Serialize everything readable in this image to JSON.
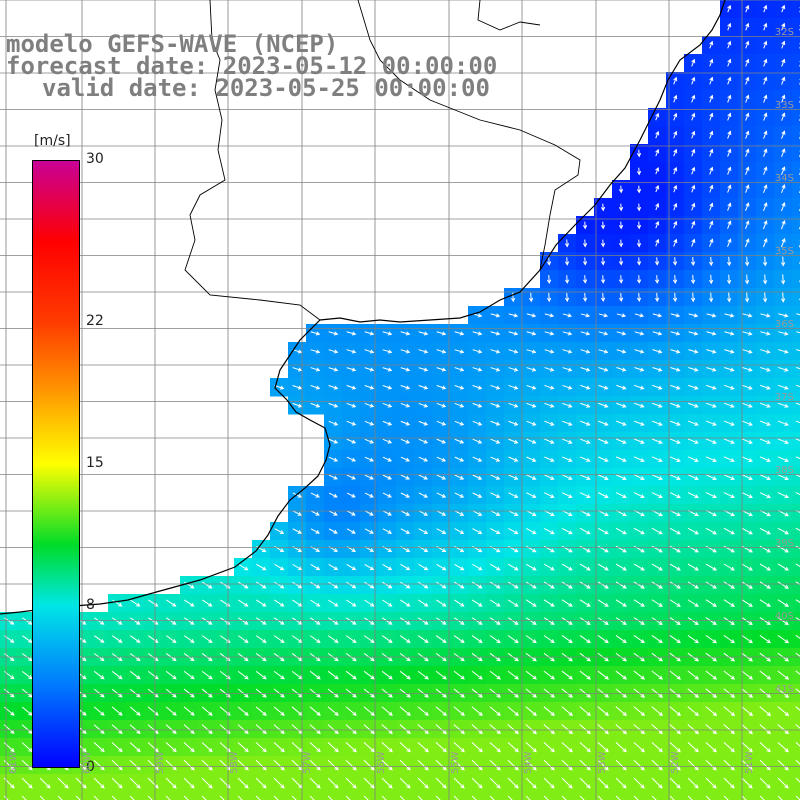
{
  "title": {
    "line1": "modelo GEFS-WAVE (NCEP)",
    "line2": "forecast date: 2023-05-12 00:00:00",
    "line3": "valid date: 2023-05-25 00:00:00"
  },
  "colorbar": {
    "units": "[m/s]",
    "min": 0,
    "max": 30,
    "ticks": [
      "30",
      "22",
      "15",
      "8",
      "0"
    ],
    "tick_values": [
      30,
      22,
      15,
      8,
      0
    ]
  },
  "lat_labels": [
    "32S",
    "33S",
    "34S",
    "35S",
    "36S",
    "37S",
    "38S",
    "39S",
    "40S",
    "41S"
  ],
  "lon_labels": [
    "61W",
    "60W",
    "59W",
    "58W",
    "57W",
    "56W",
    "55W",
    "54W",
    "53W",
    "52W",
    "51W"
  ],
  "colors": {
    "land": "#ffffff",
    "grid": "#808080",
    "coast": "#000000",
    "arrow": "#ffffff",
    "label": "#7f7f7f"
  }
}
